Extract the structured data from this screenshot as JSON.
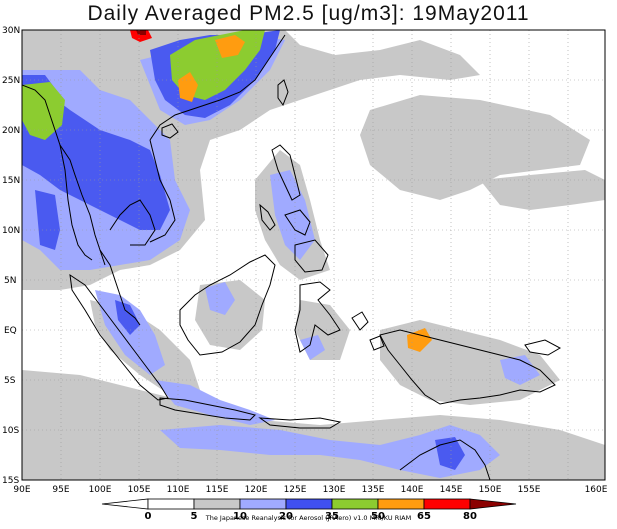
{
  "title": "Daily Averaged PM2.5 [ug/m3]: 19May2011",
  "lat_labels": [
    "30N",
    "25N",
    "20N",
    "15N",
    "10N",
    "5N",
    "EQ",
    "5S",
    "10S",
    "15S"
  ],
  "lon_labels": [
    "90E",
    "95E",
    "100E",
    "105E",
    "110E",
    "115E",
    "120E",
    "125E",
    "130E",
    "135E",
    "140E",
    "145E",
    "150E",
    "155E",
    "160E"
  ],
  "colorbar": {
    "levels": [
      "0",
      "5",
      "10",
      "20",
      "35",
      "50",
      "65",
      "80"
    ],
    "colors": [
      "#ffffff",
      "#ffffff",
      "#c8c8c8",
      "#a0aaff",
      "#4050f0",
      "#8ccc30",
      "#ff9c10",
      "#ff0000",
      "#8b0000"
    ]
  },
  "credit": "The Japanese Reanalysis for Aerosol (JRAero) v1.0 MRI/KU RIAM",
  "colors": {
    "gray": "#c8c8c8",
    "lightblue": "#a0aaff",
    "blue": "#4a5af0",
    "green": "#8ccc30",
    "orange": "#ff9c10",
    "red": "#ff0000",
    "darkred": "#8b0000"
  }
}
